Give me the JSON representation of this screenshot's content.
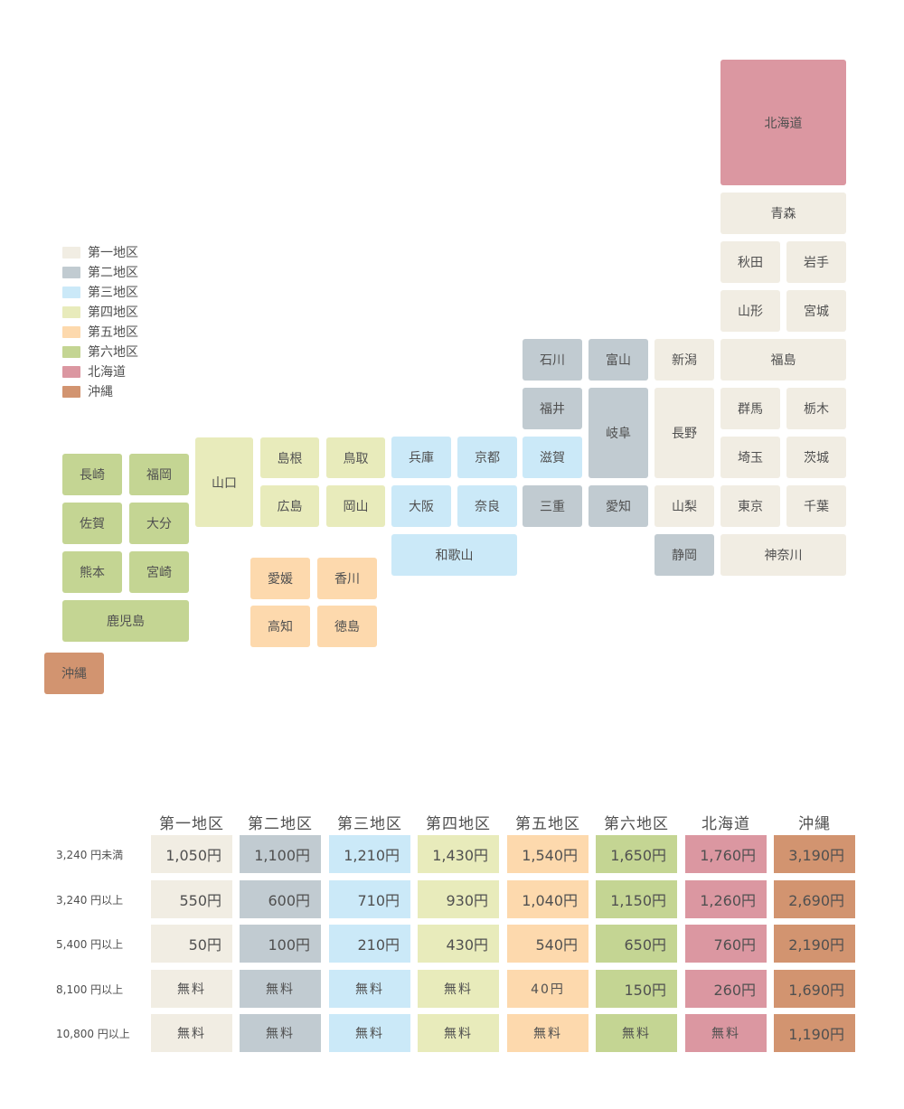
{
  "colors": {
    "zone1": "#f1ede3",
    "zone2": "#c1cbd1",
    "zone3": "#cbe9f8",
    "zone4": "#e8ebbb",
    "zone5": "#fdd9ad",
    "zone6": "#c4d593",
    "hokkaido": "#db97a1",
    "okinawa": "#d29470"
  },
  "legend": {
    "items": [
      {
        "label": "第一地区",
        "color": "#f1ede3"
      },
      {
        "label": "第二地区",
        "color": "#c1cbd1"
      },
      {
        "label": "第三地区",
        "color": "#cbe9f8"
      },
      {
        "label": "第四地区",
        "color": "#e8ebbb"
      },
      {
        "label": "第五地区",
        "color": "#fdd9ad"
      },
      {
        "label": "第六地区",
        "color": "#c4d593"
      },
      {
        "label": "北海道",
        "color": "#db97a1"
      },
      {
        "label": "沖縄",
        "color": "#d29470"
      }
    ]
  },
  "prefs": {
    "hokkaido": "北海道",
    "aomori": "青森",
    "akita": "秋田",
    "iwate": "岩手",
    "yamagata": "山形",
    "miyagi": "宮城",
    "fukushima": "福島",
    "ishikawa": "石川",
    "toyama": "富山",
    "niigata": "新潟",
    "fukui": "福井",
    "gifu": "岐阜",
    "nagano": "長野",
    "gunma": "群馬",
    "tochigi": "栃木",
    "saitama": "埼玉",
    "ibaraki": "茨城",
    "shiga": "滋賀",
    "mie": "三重",
    "aichi": "愛知",
    "yamanashi": "山梨",
    "tokyo": "東京",
    "chiba": "千葉",
    "shizuoka": "静岡",
    "kanagawa": "神奈川",
    "yamaguchi": "山口",
    "shimane": "島根",
    "tottori": "鳥取",
    "hiroshima": "広島",
    "okayama": "岡山",
    "hyogo": "兵庫",
    "kyoto": "京都",
    "osaka": "大阪",
    "nara": "奈良",
    "wakayama": "和歌山",
    "ehime": "愛媛",
    "kagawa": "香川",
    "kochi": "高知",
    "tokushima": "徳島",
    "nagasaki": "長崎",
    "fukuoka": "福岡",
    "saga": "佐賀",
    "oita": "大分",
    "kumamoto": "熊本",
    "miyazaki": "宮崎",
    "kagoshima": "鹿児島",
    "okinawa": "沖縄"
  },
  "table": {
    "headers": [
      "第一地区",
      "第二地区",
      "第三地区",
      "第四地区",
      "第五地区",
      "第六地区",
      "北海道",
      "沖縄"
    ],
    "rows": [
      {
        "label": "3,240 円未満",
        "values": [
          "1,050円",
          "1,100円",
          "1,210円",
          "1,430円",
          "1,540円",
          "1,650円",
          "1,760円",
          "3,190円"
        ]
      },
      {
        "label": "3,240 円以上",
        "values": [
          "550円",
          "600円",
          "710円",
          "930円",
          "1,040円",
          "1,150円",
          "1,260円",
          "2,690円"
        ]
      },
      {
        "label": "5,400 円以上",
        "values": [
          "50円",
          "100円",
          "210円",
          "430円",
          "540円",
          "650円",
          "760円",
          "2,190円"
        ]
      },
      {
        "label": "8,100 円以上",
        "values": [
          "無料",
          "無料",
          "無料",
          "無料",
          "40円",
          "150円",
          "260円",
          "1,690円"
        ]
      },
      {
        "label": "10,800 円以上",
        "values": [
          "無料",
          "無料",
          "無料",
          "無料",
          "無料",
          "無料",
          "無料",
          "1,190円"
        ]
      }
    ]
  }
}
